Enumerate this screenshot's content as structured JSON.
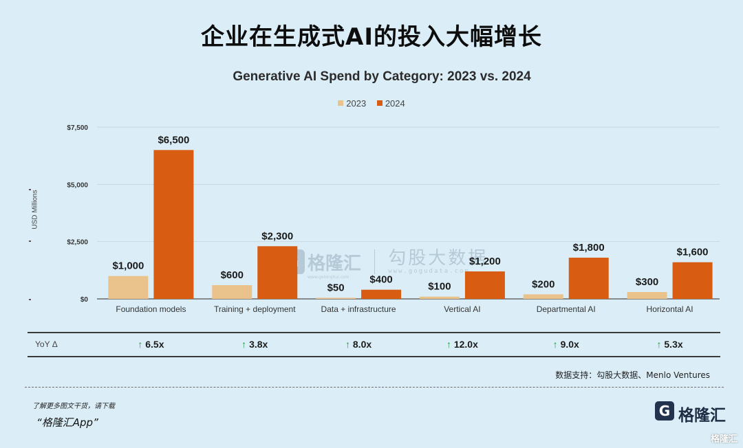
{
  "page": {
    "title": "企业在生成式AI的投入大幅增长",
    "source": "数据支持：勾股大数据、Menlo Ventures",
    "footer_note_1": "了解更多图文干货，请下载",
    "footer_note_2": "“格隆汇App”",
    "brand_name": "格隆汇",
    "brand_icon": "G",
    "corner_tag": "格隆汇",
    "watermark": {
      "brand": "格隆汇",
      "brand_url": "www.gelonghui.com",
      "text": "勾股大数据",
      "url": "www.gogudata.com"
    }
  },
  "chart_data": {
    "type": "bar",
    "title": "Generative AI Spend by Category: 2023 vs. 2024",
    "ylabel": "USD Millions",
    "xlabel": "",
    "ylim": [
      0,
      7500
    ],
    "yticks": [
      0,
      2500,
      5000,
      7500
    ],
    "ytick_labels": [
      "$0",
      "$2,500",
      "$5,000",
      "$7,500"
    ],
    "grid": true,
    "legend_position": "top-center",
    "categories": [
      "Foundation models",
      "Training + deployment",
      "Data + infrastructure",
      "Vertical AI",
      "Departmental AI",
      "Horizontal AI"
    ],
    "series": [
      {
        "name": "2023",
        "color": "#e9c28c",
        "values": [
          1000,
          600,
          50,
          100,
          200,
          300
        ],
        "labels": [
          "$1,000",
          "$600",
          "$50",
          "$100",
          "$200",
          "$300"
        ]
      },
      {
        "name": "2024",
        "color": "#d85d12",
        "values": [
          6500,
          2300,
          400,
          1200,
          1800,
          1600
        ],
        "labels": [
          "$6,500",
          "$2,300",
          "$400",
          "$1,200",
          "$1,800",
          "$1,600"
        ]
      }
    ],
    "yoy": {
      "label": "YoY Δ",
      "arrow": "↑",
      "arrow_color": "#1f9a3a",
      "values": [
        "6.5x",
        "3.8x",
        "8.0x",
        "12.0x",
        "9.0x",
        "5.3x"
      ]
    }
  }
}
